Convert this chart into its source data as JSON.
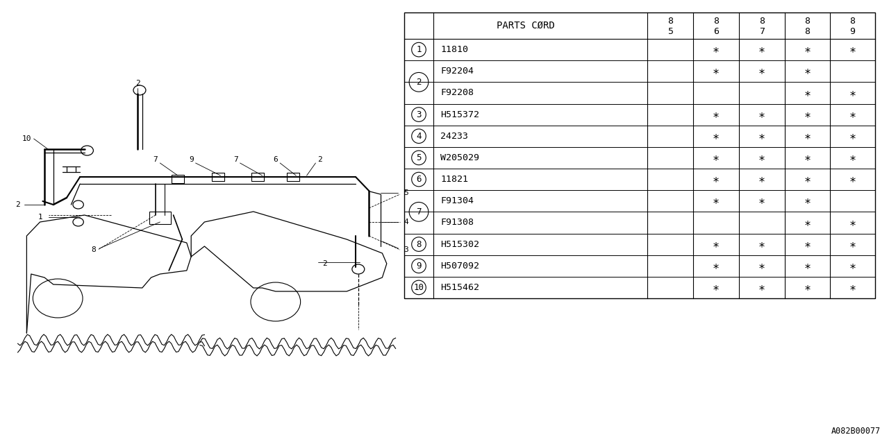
{
  "diagram_code": "A082B00077",
  "bg_color": "#ffffff",
  "line_color": "#000000",
  "text_color": "#000000",
  "table": {
    "rows": [
      {
        "num": "1",
        "part": "11810",
        "c85": "",
        "c86": "*",
        "c87": "*",
        "c88": "*",
        "c89": "*"
      },
      {
        "num": "2",
        "part": "F92204",
        "c85": "",
        "c86": "*",
        "c87": "*",
        "c88": "*",
        "c89": ""
      },
      {
        "num": "2",
        "part": "F92208",
        "c85": "",
        "c86": "",
        "c87": "",
        "c88": "*",
        "c89": "*"
      },
      {
        "num": "3",
        "part": "H515372",
        "c85": "",
        "c86": "*",
        "c87": "*",
        "c88": "*",
        "c89": "*"
      },
      {
        "num": "4",
        "part": "24233",
        "c85": "",
        "c86": "*",
        "c87": "*",
        "c88": "*",
        "c89": "*"
      },
      {
        "num": "5",
        "part": "W205029",
        "c85": "",
        "c86": "*",
        "c87": "*",
        "c88": "*",
        "c89": "*"
      },
      {
        "num": "6",
        "part": "11821",
        "c85": "",
        "c86": "*",
        "c87": "*",
        "c88": "*",
        "c89": "*"
      },
      {
        "num": "7",
        "part": "F91304",
        "c85": "",
        "c86": "*",
        "c87": "*",
        "c88": "*",
        "c89": ""
      },
      {
        "num": "7",
        "part": "F91308",
        "c85": "",
        "c86": "",
        "c87": "",
        "c88": "*",
        "c89": "*"
      },
      {
        "num": "8",
        "part": "H515302",
        "c85": "",
        "c86": "*",
        "c87": "*",
        "c88": "*",
        "c89": "*"
      },
      {
        "num": "9",
        "part": "H507092",
        "c85": "",
        "c86": "*",
        "c87": "*",
        "c88": "*",
        "c89": "*"
      },
      {
        "num": "10",
        "part": "H515462",
        "c85": "",
        "c86": "*",
        "c87": "*",
        "c88": "*",
        "c89": "*"
      }
    ],
    "groups": [
      [
        0
      ],
      [
        1,
        2
      ],
      [
        3
      ],
      [
        4
      ],
      [
        5
      ],
      [
        6
      ],
      [
        7,
        8
      ],
      [
        9
      ],
      [
        10
      ],
      [
        11
      ]
    ]
  }
}
